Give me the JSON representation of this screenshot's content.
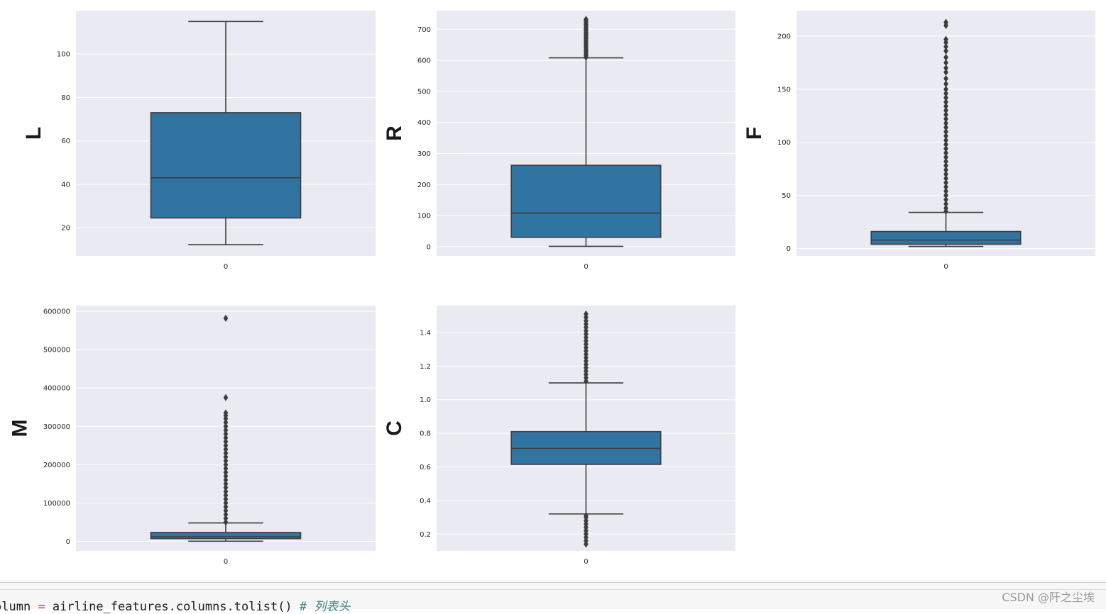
{
  "chart_data": [
    {
      "type": "box",
      "ylabel": "L",
      "xticks": [
        "0"
      ],
      "ylim": [
        7,
        120
      ],
      "yticks": [
        20,
        40,
        60,
        80,
        100
      ],
      "grid": true,
      "box": {
        "whisker_low": 12.2,
        "q1": 24.5,
        "median": 43,
        "q3": 73,
        "whisker_high": 115
      },
      "outliers": []
    },
    {
      "type": "box",
      "ylabel": "R",
      "xticks": [
        "0"
      ],
      "ylim": [
        -30,
        760
      ],
      "yticks": [
        0,
        100,
        200,
        300,
        400,
        500,
        600,
        700
      ],
      "grid": true,
      "box": {
        "whisker_low": 1,
        "q1": 30,
        "median": 108,
        "q3": 262,
        "whisker_high": 608
      },
      "outliers": [
        610,
        615,
        620,
        625,
        630,
        635,
        640,
        645,
        650,
        655,
        660,
        665,
        670,
        675,
        680,
        685,
        690,
        695,
        700,
        705,
        710,
        715,
        720,
        725,
        730,
        732
      ]
    },
    {
      "type": "box",
      "ylabel": "F",
      "xticks": [
        "0"
      ],
      "ylim": [
        -7,
        224
      ],
      "yticks": [
        0,
        50,
        100,
        150,
        200
      ],
      "grid": true,
      "box": {
        "whisker_low": 2,
        "q1": 4,
        "median": 8,
        "q3": 16,
        "whisker_high": 34
      },
      "outliers": [
        35,
        38,
        42,
        46,
        50,
        54,
        58,
        62,
        66,
        70,
        74,
        78,
        82,
        86,
        90,
        94,
        98,
        102,
        106,
        110,
        114,
        118,
        122,
        126,
        130,
        134,
        138,
        142,
        146,
        150,
        155,
        160,
        166,
        170,
        175,
        180,
        186,
        190,
        194,
        197,
        210,
        213
      ]
    },
    {
      "type": "box",
      "ylabel": "M",
      "xticks": [
        "0"
      ],
      "ylim": [
        -25000,
        615000
      ],
      "yticks": [
        0,
        100000,
        200000,
        300000,
        400000,
        500000,
        600000
      ],
      "grid": true,
      "box": {
        "whisker_low": 400,
        "q1": 7000,
        "median": 12000,
        "q3": 23000,
        "whisker_high": 48000
      },
      "outliers": [
        50000,
        60000,
        70000,
        80000,
        90000,
        100000,
        110000,
        120000,
        130000,
        140000,
        150000,
        160000,
        170000,
        180000,
        190000,
        200000,
        210000,
        220000,
        230000,
        240000,
        250000,
        260000,
        270000,
        280000,
        290000,
        300000,
        310000,
        320000,
        328000,
        335000,
        375000,
        582000
      ]
    },
    {
      "type": "box",
      "ylabel": "C",
      "xticks": [
        "0"
      ],
      "ylim": [
        0.1,
        1.56
      ],
      "yticks": [
        "0.2",
        "0.4",
        "0.6",
        "0.8",
        "1.0",
        "1.2",
        "1.4"
      ],
      "grid": true,
      "box": {
        "whisker_low": 0.32,
        "q1": 0.615,
        "median": 0.71,
        "q3": 0.81,
        "whisker_high": 1.1
      },
      "outliers": [
        0.14,
        0.16,
        0.18,
        0.2,
        0.22,
        0.24,
        0.26,
        0.28,
        0.3,
        0.31,
        1.11,
        1.13,
        1.15,
        1.17,
        1.19,
        1.21,
        1.23,
        1.25,
        1.27,
        1.29,
        1.31,
        1.33,
        1.35,
        1.37,
        1.39,
        1.41,
        1.43,
        1.45,
        1.47,
        1.49,
        1.51
      ]
    }
  ],
  "colors": {
    "axes_bg": "#eaeaf2",
    "grid": "#ffffff",
    "box_fill": "#3274a1",
    "line": "#3d3d3d",
    "tick_text": "#262626"
  },
  "code_cell": {
    "prefix": "olumn ",
    "op": "=",
    "expr": " airline_features.columns.tolist() ",
    "comment": "# 列表头"
  },
  "watermark": "CSDN @阡之尘埃"
}
